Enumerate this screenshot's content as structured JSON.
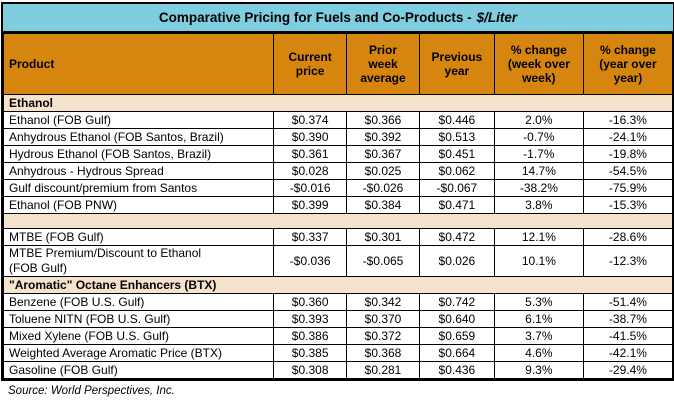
{
  "header": {
    "title_main": "Comparative Pricing for Fuels and Co-Products -",
    "title_unit": "$/Liter"
  },
  "colors": {
    "title_bg": "#7FCEE0",
    "header_bg": "#D6860E",
    "section_bg": "#F5E3CE",
    "border": "#000000"
  },
  "footer": {
    "source": "Source: World Perspectives, Inc."
  },
  "chart_data": {
    "type": "table",
    "title": "Comparative Pricing for Fuels and Co-Products - $/Liter",
    "columns": [
      "Product",
      "Current\nprice",
      "Prior\nweek\naverage",
      "Previous\nyear",
      "% change\n(week over\nweek)",
      "% change\n(year over\nyear)"
    ],
    "rows": [
      {
        "type": "section",
        "label": "Ethanol"
      },
      {
        "type": "data",
        "label": "Ethanol (FOB Gulf)",
        "values": [
          "$0.374",
          "$0.366",
          "$0.446",
          "2.0%",
          "-16.3%"
        ]
      },
      {
        "type": "data",
        "label": "Anhydrous Ethanol (FOB Santos, Brazil)",
        "values": [
          "$0.390",
          "$0.392",
          "$0.513",
          "-0.7%",
          "-24.1%"
        ]
      },
      {
        "type": "data",
        "label": "Hydrous Ethanol (FOB Santos, Brazil)",
        "values": [
          "$0.361",
          "$0.367",
          "$0.451",
          "-1.7%",
          "-19.8%"
        ]
      },
      {
        "type": "data",
        "label": "Anhydrous - Hydrous Spread",
        "values": [
          "$0.028",
          "$0.025",
          "$0.062",
          "14.7%",
          "-54.5%"
        ]
      },
      {
        "type": "data",
        "label": "Gulf discount/premium from Santos",
        "values": [
          "-$0.016",
          "-$0.026",
          "-$0.067",
          "-38.2%",
          "-75.9%"
        ]
      },
      {
        "type": "data",
        "label": "Ethanol (FOB PNW)",
        "values": [
          "$0.399",
          "$0.384",
          "$0.471",
          "3.8%",
          "-15.3%"
        ]
      },
      {
        "type": "separator",
        "label": ""
      },
      {
        "type": "data",
        "label": "MTBE (FOB Gulf)",
        "values": [
          "$0.337",
          "$0.301",
          "$0.472",
          "12.1%",
          "-28.6%"
        ]
      },
      {
        "type": "data",
        "label": "MTBE Premium/Discount to Ethanol\n(FOB Gulf)",
        "values": [
          "-$0.036",
          "-$0.065",
          "$0.026",
          "10.1%",
          "-12.3%"
        ]
      },
      {
        "type": "section",
        "label": "\"Aromatic\" Octane Enhancers (BTX)"
      },
      {
        "type": "data",
        "label": "Benzene (FOB U.S. Gulf)",
        "values": [
          "$0.360",
          "$0.342",
          "$0.742",
          "5.3%",
          "-51.4%"
        ]
      },
      {
        "type": "data",
        "label": "Toluene NITN (FOB U.S. Gulf)",
        "values": [
          "$0.393",
          "$0.370",
          "$0.640",
          "6.1%",
          "-38.7%"
        ]
      },
      {
        "type": "data",
        "label": "Mixed Xylene (FOB U.S. Gulf)",
        "values": [
          "$0.386",
          "$0.372",
          "$0.659",
          "3.7%",
          "-41.5%"
        ]
      },
      {
        "type": "data",
        "label": "Weighted Average Aromatic Price (BTX)",
        "values": [
          "$0.385",
          "$0.368",
          "$0.664",
          "4.6%",
          "-42.1%"
        ]
      },
      {
        "type": "data",
        "label": "Gasoline (FOB Gulf)",
        "values": [
          "$0.308",
          "$0.281",
          "$0.436",
          "9.3%",
          "-29.4%"
        ]
      }
    ]
  }
}
